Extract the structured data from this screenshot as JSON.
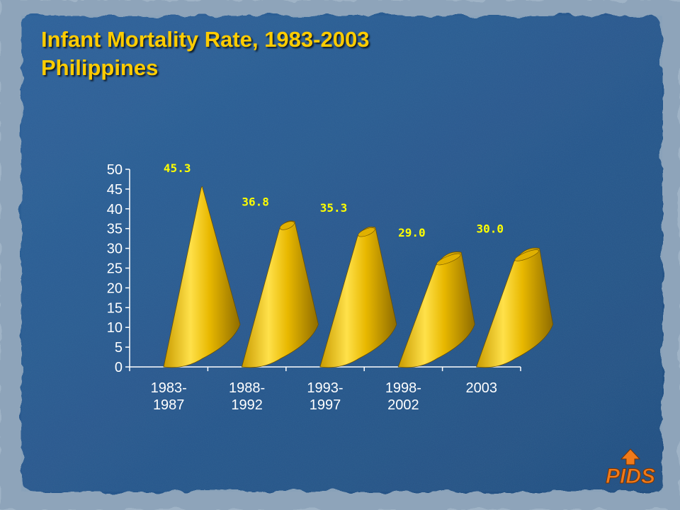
{
  "slide": {
    "title_line1": "Infant Mortality Rate, 1983-2003",
    "title_line2": "Philippines",
    "logo_text": "PIDS"
  },
  "colors": {
    "background": "#2a5a8c",
    "frame": "#9fb3c6",
    "title": "#ffcc00",
    "cone_light": "#ffe14a",
    "cone_dark": "#9a7600",
    "data_label": "#ffff00",
    "axis": "#ffffff",
    "logo": "#f07a1a"
  },
  "chart_data": {
    "type": "bar",
    "bar_shape": "cone",
    "title": "Infant Mortality Rate, 1983-2003",
    "subtitle": "Philippines",
    "categories": [
      "1983-\n1987",
      "1988-\n1992",
      "1993-\n1997",
      "1998-\n2002",
      "2003"
    ],
    "values": [
      45.3,
      36.8,
      35.3,
      29.0,
      30.0
    ],
    "data_labels": [
      "45.3",
      "36.8",
      "35.3",
      "29.0",
      "30.0"
    ],
    "ylim": [
      0,
      50
    ],
    "yticks": [
      0,
      5,
      10,
      15,
      20,
      25,
      30,
      35,
      40,
      45,
      50
    ],
    "xlabel": "",
    "ylabel": "",
    "grid": false,
    "legend": "none"
  }
}
